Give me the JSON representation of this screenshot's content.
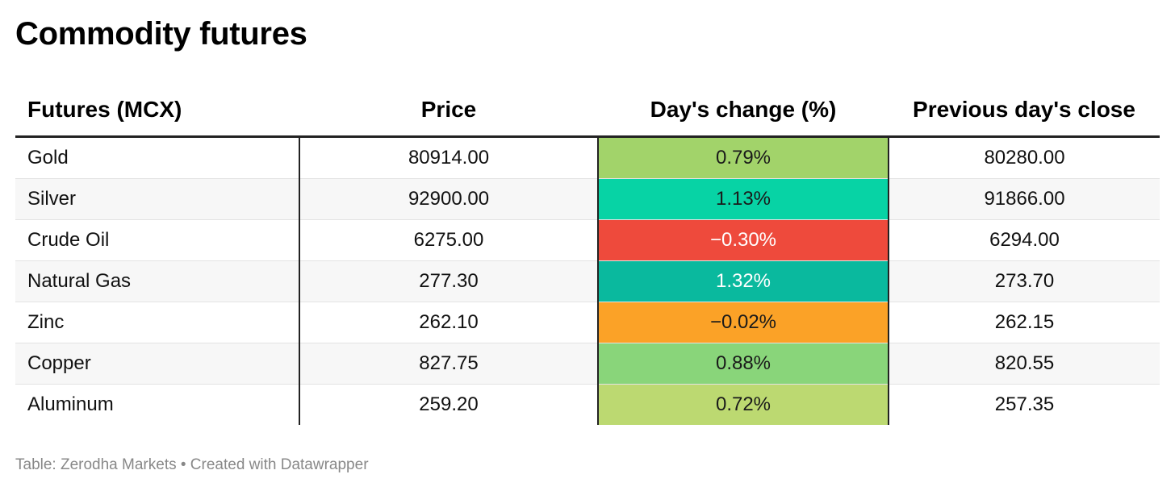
{
  "title": "Commodity futures",
  "footer": "Table: Zerodha Markets • Created with Datawrapper",
  "chart_data": {
    "type": "table",
    "columns": [
      "Futures (MCX)",
      "Price",
      "Day's change (%)",
      "Previous day's close"
    ],
    "rows": [
      {
        "name": "Gold",
        "price": "80914.00",
        "change": "0.79%",
        "prev": "80280.00",
        "color": "#a2d36a",
        "text_color": "#1a1a1a"
      },
      {
        "name": "Silver",
        "price": "92900.00",
        "change": "1.13%",
        "prev": "91866.00",
        "color": "#07d3a5",
        "text_color": "#1a1a1a"
      },
      {
        "name": "Crude Oil",
        "price": "6275.00",
        "change": "−0.30%",
        "prev": "6294.00",
        "color": "#ee4a3c",
        "text_color": "#ffffff"
      },
      {
        "name": "Natural Gas",
        "price": "277.30",
        "change": "1.32%",
        "prev": "273.70",
        "color": "#0ab99e",
        "text_color": "#ffffff"
      },
      {
        "name": "Zinc",
        "price": "262.10",
        "change": "−0.02%",
        "prev": "262.15",
        "color": "#fba227",
        "text_color": "#1a1a1a"
      },
      {
        "name": "Copper",
        "price": "827.75",
        "change": "0.88%",
        "prev": "820.55",
        "color": "#89d57a",
        "text_color": "#1a1a1a"
      },
      {
        "name": "Aluminum",
        "price": "259.20",
        "change": "0.72%",
        "prev": "257.35",
        "color": "#bcd971",
        "text_color": "#1a1a1a"
      }
    ]
  }
}
